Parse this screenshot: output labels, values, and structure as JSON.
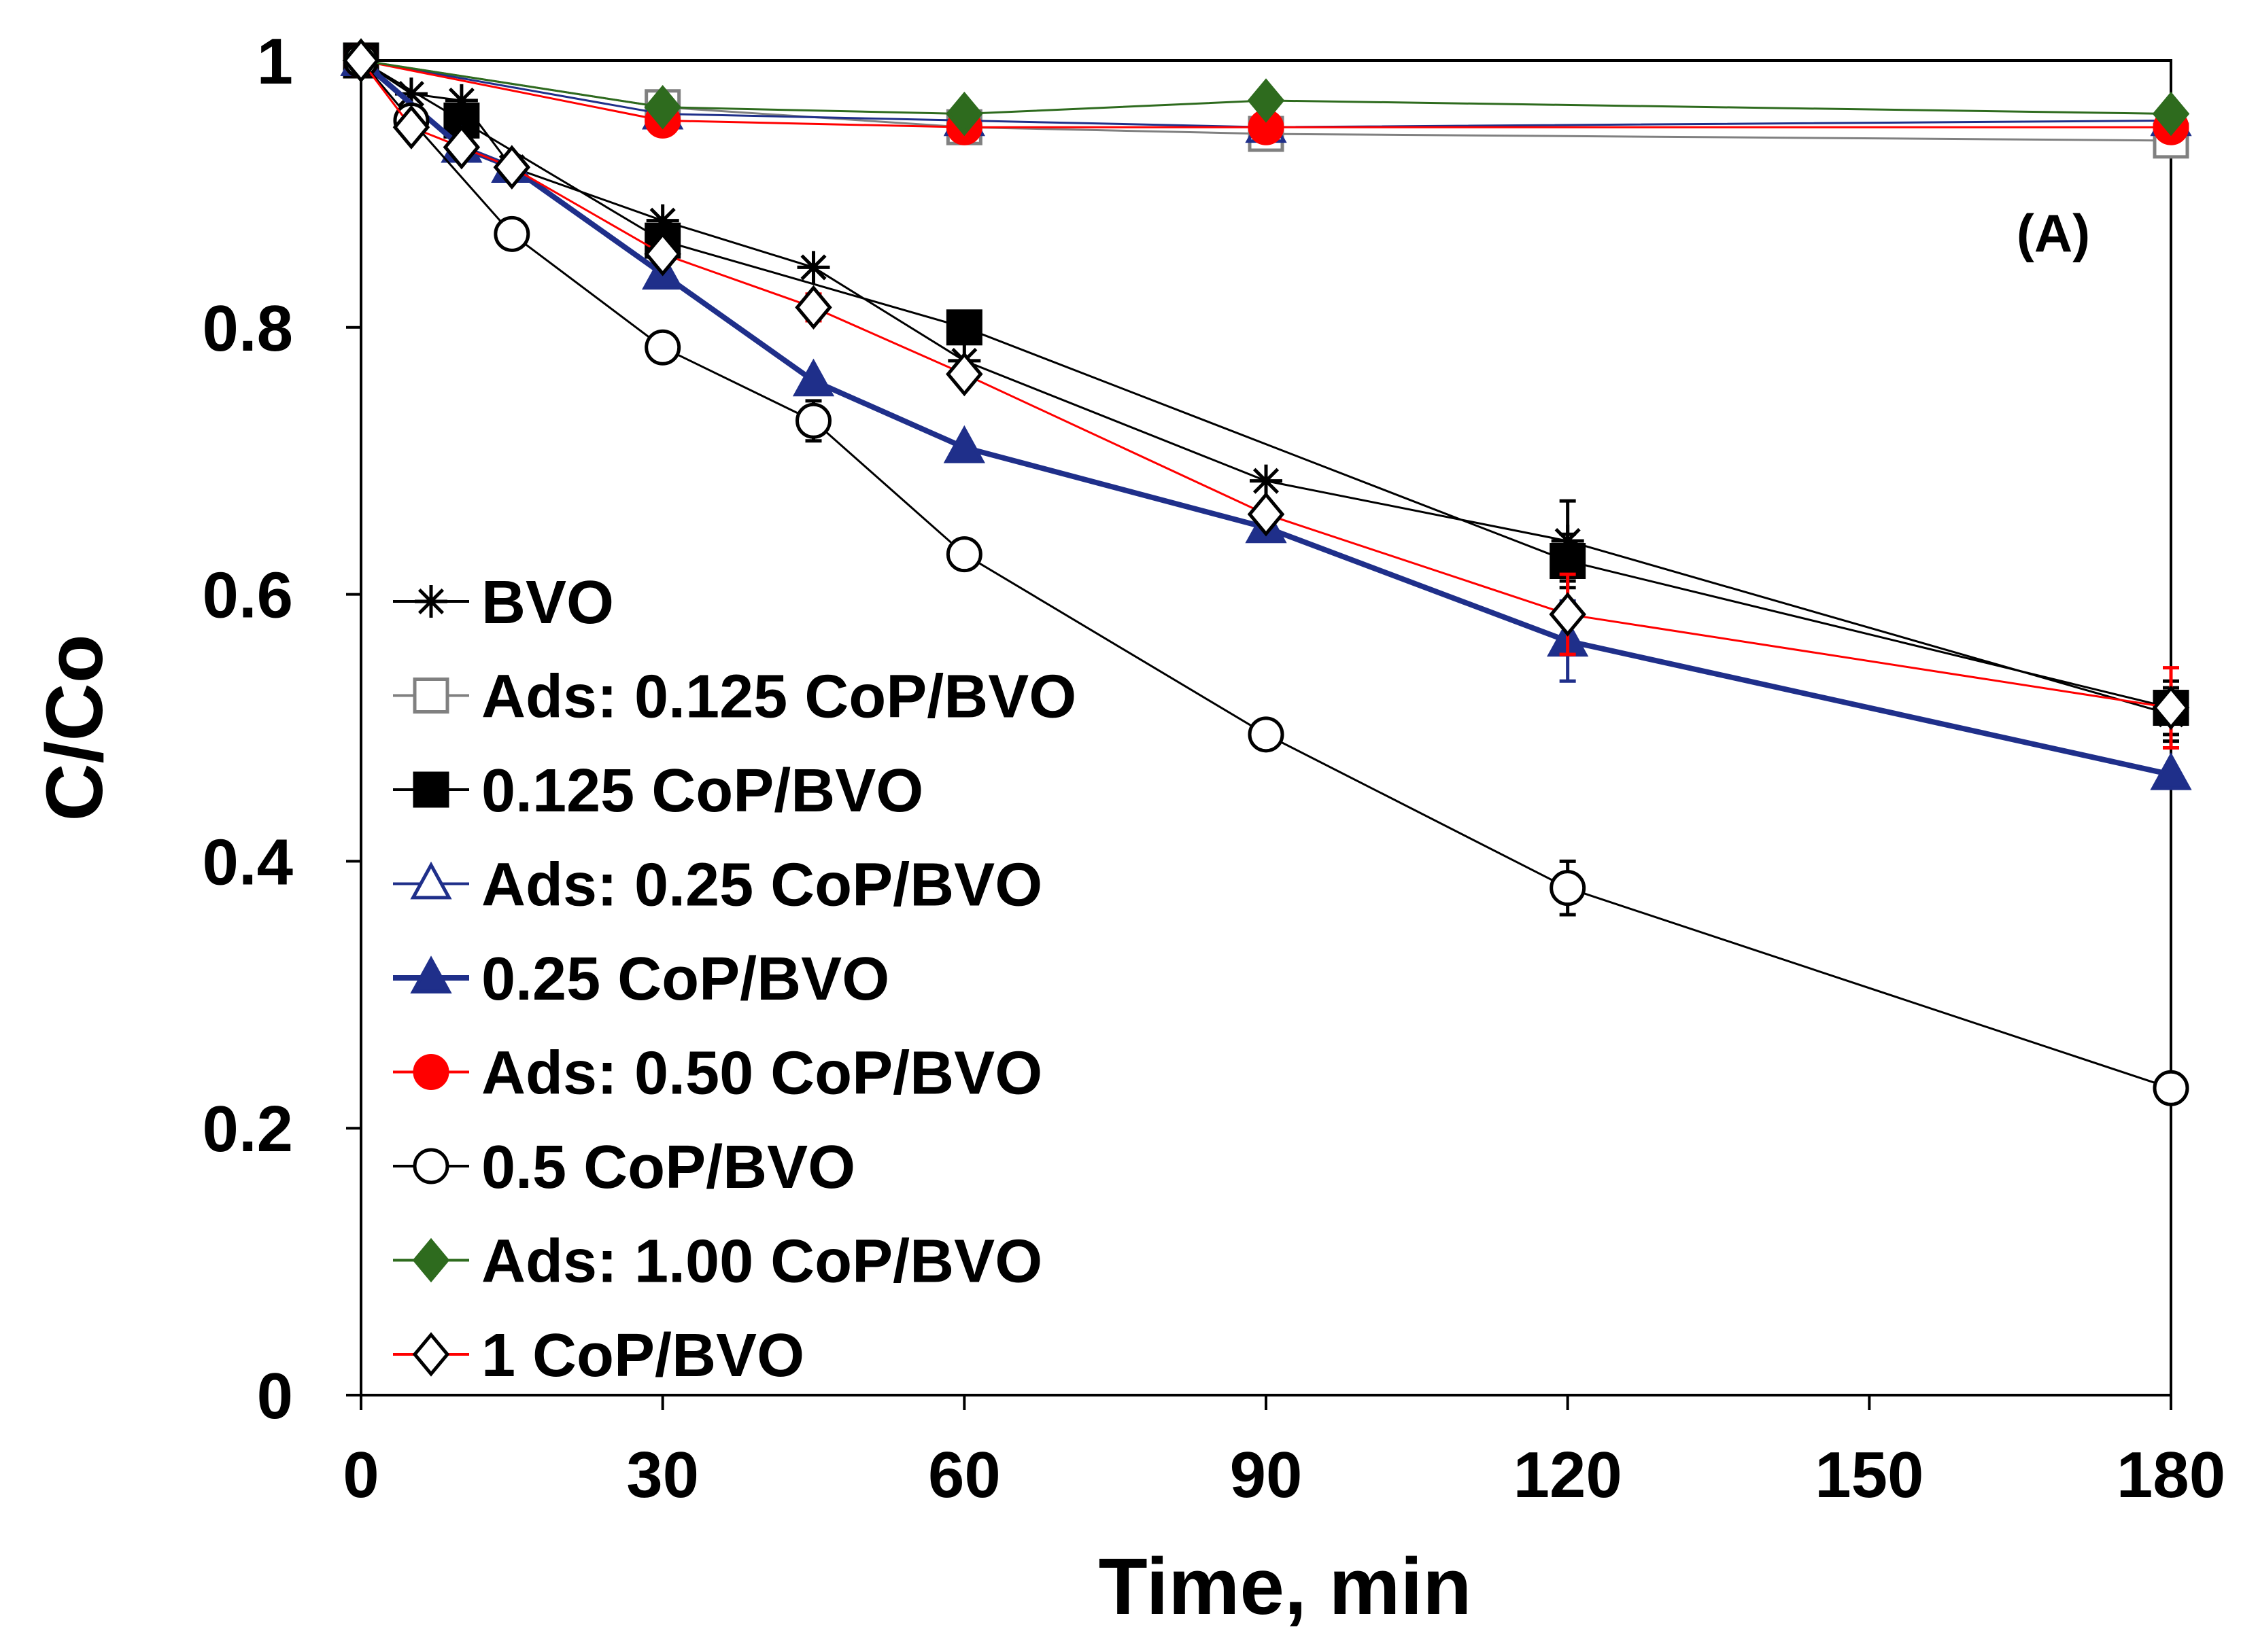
{
  "chart_data": {
    "type": "line",
    "title": "",
    "annotation": "(A)",
    "xlabel": "Time, min",
    "ylabel": "C/Co",
    "xlim": [
      0,
      180
    ],
    "ylim": [
      0,
      1
    ],
    "xticks": [
      0,
      30,
      60,
      90,
      120,
      150,
      180
    ],
    "xtick_labels": [
      "0",
      "30",
      "60",
      "90",
      "120",
      "150",
      "180"
    ],
    "yticks": [
      0,
      0.2,
      0.4,
      0.6,
      0.8,
      1
    ],
    "ytick_labels": [
      "0",
      "0.2",
      "0.4",
      "0.6",
      "0.8",
      "1"
    ],
    "grid": false,
    "legend_position": "left",
    "series": [
      {
        "name": "BVO",
        "marker": "star",
        "color": "#000000",
        "fill": "#000000",
        "x": [
          0,
          5,
          10,
          15,
          30,
          45,
          60,
          90,
          120,
          180
        ],
        "y": [
          1.0,
          0.975,
          0.97,
          0.92,
          0.88,
          0.845,
          0.775,
          0.685,
          0.64,
          0.51
        ],
        "err": [
          0,
          0,
          0,
          0,
          0,
          0,
          0,
          0,
          0.03,
          0.02
        ]
      },
      {
        "name": "Ads: 0.125 CoP/BVO",
        "marker": "square",
        "color": "#808080",
        "fill": "#ffffff",
        "x": [
          0,
          30,
          60,
          90,
          180
        ],
        "y": [
          1.0,
          0.965,
          0.95,
          0.945,
          0.94
        ],
        "err": [
          0,
          0,
          0,
          0,
          0
        ]
      },
      {
        "name": "0.125 CoP/BVO",
        "marker": "square",
        "color": "#000000",
        "fill": "#000000",
        "x": [
          0,
          10,
          30,
          60,
          120,
          180
        ],
        "y": [
          1.0,
          0.955,
          0.865,
          0.8,
          0.625,
          0.515
        ],
        "err": [
          0,
          0,
          0,
          0,
          0.02,
          0.02
        ]
      },
      {
        "name": "Ads: 0.25 CoP/BVO",
        "marker": "triangle",
        "color": "#1f2f8a",
        "fill": "#ffffff",
        "x": [
          0,
          30,
          60,
          90,
          180
        ],
        "y": [
          1.0,
          0.96,
          0.955,
          0.95,
          0.955
        ],
        "err": [
          0,
          0,
          0,
          0,
          0
        ]
      },
      {
        "name": "0.25 CoP/BVO",
        "marker": "triangle",
        "color": "#1f2f8a",
        "fill": "#1f2f8a",
        "x": [
          0,
          10,
          15,
          30,
          45,
          60,
          90,
          120,
          180
        ],
        "y": [
          1.0,
          0.935,
          0.92,
          0.84,
          0.76,
          0.71,
          0.65,
          0.565,
          0.465
        ],
        "err": [
          0,
          0,
          0,
          0,
          0,
          0,
          0,
          0.03,
          0
        ]
      },
      {
        "name": "Ads: 0.50 CoP/BVO",
        "marker": "circle",
        "color": "#ff0000",
        "fill": "#ff0000",
        "x": [
          0,
          30,
          60,
          90,
          180
        ],
        "y": [
          1.0,
          0.955,
          0.95,
          0.95,
          0.95
        ],
        "err": [
          0,
          0,
          0,
          0,
          0
        ]
      },
      {
        "name": "0.5 CoP/BVO",
        "marker": "circle",
        "color": "#000000",
        "fill": "#ffffff",
        "x": [
          0,
          5,
          15,
          30,
          45,
          60,
          90,
          120,
          180
        ],
        "y": [
          1.0,
          0.955,
          0.87,
          0.785,
          0.73,
          0.63,
          0.495,
          0.38,
          0.23
        ],
        "err": [
          0,
          0,
          0,
          0,
          0.015,
          0,
          0,
          0.02,
          0
        ]
      },
      {
        "name": "Ads: 1.00 CoP/BVO",
        "marker": "diamond",
        "color": "#2e6b1e",
        "fill": "#2e6b1e",
        "x": [
          0,
          30,
          60,
          90,
          180
        ],
        "y": [
          1.0,
          0.965,
          0.96,
          0.97,
          0.96
        ],
        "err": [
          0,
          0,
          0,
          0,
          0
        ]
      },
      {
        "name": "1 CoP/BVO",
        "marker": "diamond",
        "color": "#ff0000",
        "fill": "#ffffff",
        "edge": "#000000",
        "x": [
          0,
          5,
          10,
          15,
          30,
          45,
          60,
          90,
          120,
          180
        ],
        "y": [
          1.0,
          0.95,
          0.935,
          0.92,
          0.855,
          0.815,
          0.765,
          0.66,
          0.585,
          0.515
        ],
        "err": [
          0,
          0,
          0,
          0,
          0,
          0.01,
          0,
          0,
          0.03,
          0.03
        ]
      }
    ]
  }
}
